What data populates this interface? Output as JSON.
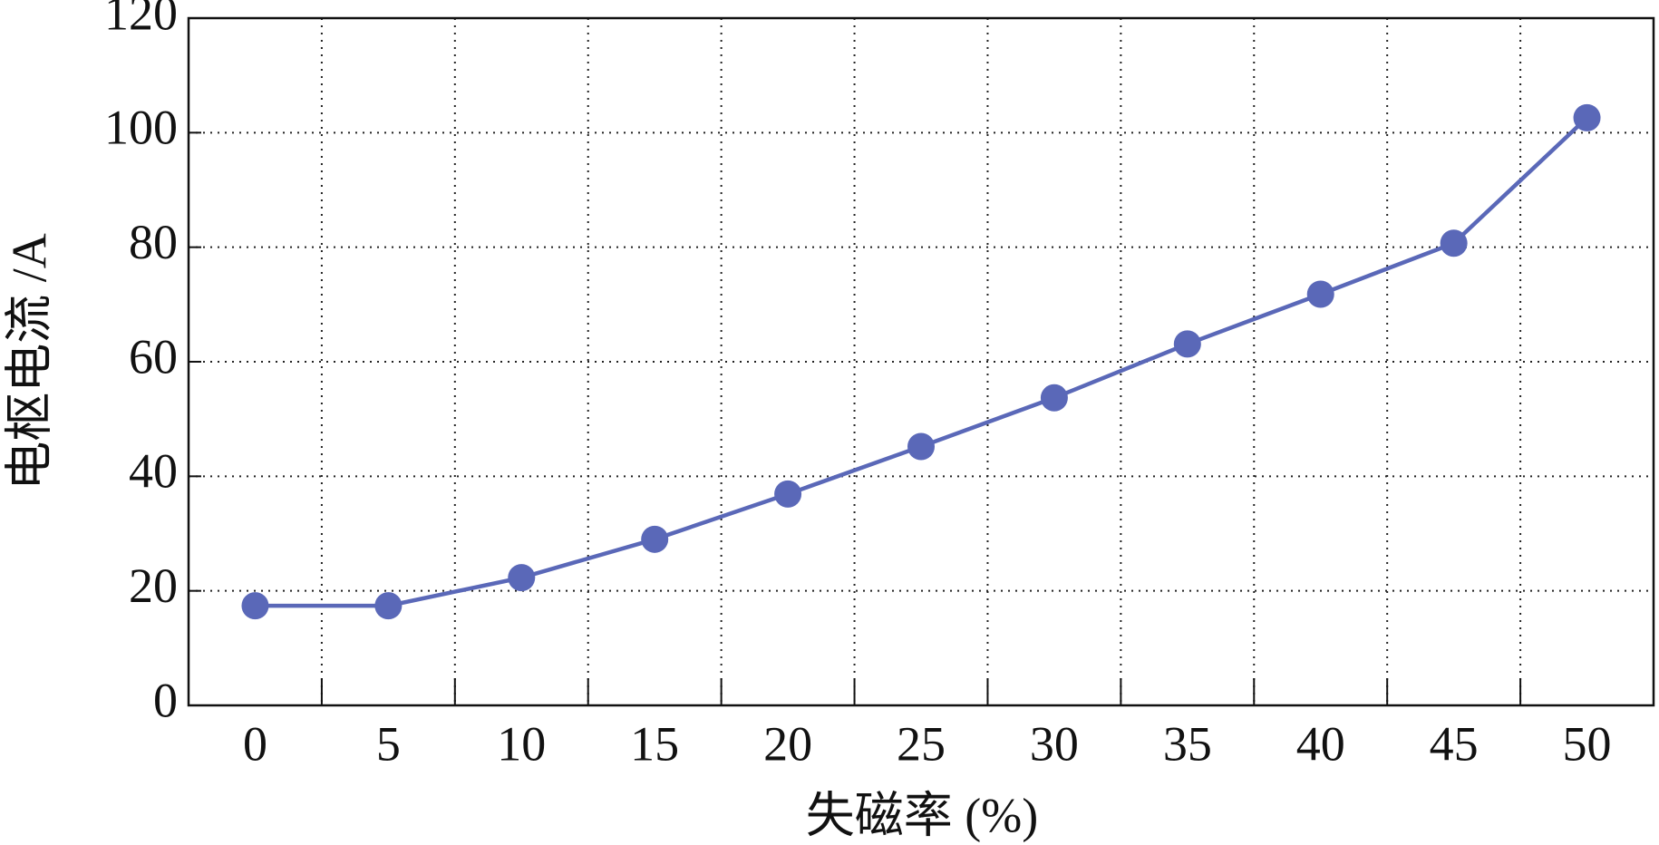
{
  "chart_data": {
    "type": "line",
    "xlabel": "失磁率 (%)",
    "ylabel": "电枢电流 /A",
    "categories": [
      "0",
      "5",
      "10",
      "15",
      "20",
      "25",
      "30",
      "35",
      "40",
      "45",
      "50"
    ],
    "values": [
      17.4,
      17.4,
      22.3,
      29.0,
      36.9,
      45.2,
      53.7,
      63.1,
      71.8,
      80.7,
      102.6
    ],
    "color": "#5a68b8",
    "ylim": [
      0,
      120
    ],
    "yticks": [
      0,
      20,
      40,
      60,
      80,
      100,
      120
    ],
    "grid": true
  }
}
